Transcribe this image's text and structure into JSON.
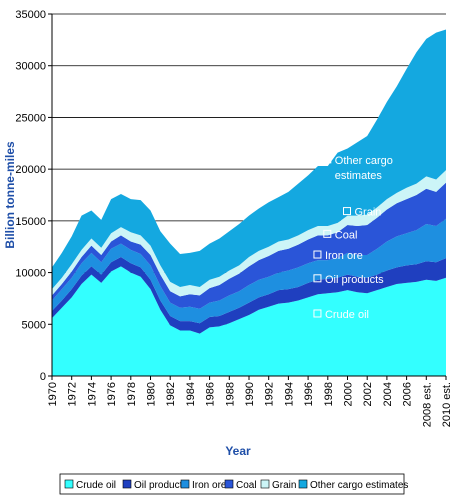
{
  "chart_data": {
    "type": "area",
    "stacked": true,
    "title": "",
    "xlabel": "Year",
    "ylabel": "Billion tonne-miles",
    "ylim": [
      0,
      35000
    ],
    "yticks": [
      0,
      5000,
      10000,
      15000,
      20000,
      25000,
      30000,
      35000
    ],
    "grid": "horizontal",
    "legend_position": "bottom",
    "x_tick_labels": [
      "1970",
      "1972",
      "1974",
      "1976",
      "1978",
      "1980",
      "1982",
      "1984",
      "1986",
      "1988",
      "1990",
      "1992",
      "1994",
      "1996",
      "1998",
      "2000",
      "2002",
      "2004",
      "2006",
      "2008 est.",
      "2010 est."
    ],
    "x": [
      "1970",
      "1971",
      "1972",
      "1973",
      "1974",
      "1975",
      "1976",
      "1977",
      "1978",
      "1979",
      "1980",
      "1981",
      "1982",
      "1983",
      "1984",
      "1985",
      "1986",
      "1987",
      "1988",
      "1989",
      "1990",
      "1991",
      "1992",
      "1993",
      "1994",
      "1995",
      "1996",
      "1997",
      "1998",
      "1999",
      "2000",
      "2001",
      "2002",
      "2003",
      "2004",
      "2005",
      "2006",
      "2007",
      "2008 est.",
      "2009",
      "2010 est."
    ],
    "series": [
      {
        "name": "Crude oil",
        "color": "#33ffff",
        "values": [
          5600,
          6600,
          7600,
          8900,
          9800,
          9000,
          10100,
          10600,
          10000,
          9600,
          8400,
          6400,
          4900,
          4400,
          4400,
          4100,
          4700,
          4800,
          5100,
          5500,
          5900,
          6400,
          6700,
          7000,
          7100,
          7300,
          7600,
          7900,
          8000,
          8100,
          8300,
          8100,
          8000,
          8300,
          8600,
          8900,
          9000,
          9100,
          9300,
          9200,
          9500
        ]
      },
      {
        "name": "Oil products",
        "color": "#1f3fbf",
        "values": [
          700,
          700,
          800,
          800,
          800,
          800,
          900,
          900,
          900,
          900,
          900,
          900,
          900,
          900,
          900,
          1000,
          1000,
          1000,
          1100,
          1100,
          1200,
          1200,
          1200,
          1300,
          1300,
          1300,
          1400,
          1400,
          1400,
          1400,
          1500,
          1500,
          1500,
          1500,
          1600,
          1600,
          1700,
          1700,
          1800,
          1800,
          1900
        ]
      },
      {
        "name": "Iron ore",
        "color": "#1e8fe0",
        "values": [
          1000,
          1100,
          1100,
          1200,
          1300,
          1200,
          1300,
          1300,
          1300,
          1300,
          1400,
          1400,
          1300,
          1300,
          1400,
          1400,
          1400,
          1500,
          1600,
          1600,
          1700,
          1700,
          1700,
          1700,
          1800,
          1900,
          1900,
          1900,
          1800,
          1900,
          2100,
          2100,
          2200,
          2500,
          2800,
          3000,
          3100,
          3300,
          3600,
          3500,
          3800
        ]
      },
      {
        "name": "Coal",
        "color": "#2a55d8",
        "values": [
          500,
          500,
          600,
          600,
          700,
          700,
          700,
          800,
          800,
          900,
          1000,
          1100,
          1100,
          1100,
          1200,
          1300,
          1400,
          1500,
          1600,
          1700,
          1800,
          1900,
          2000,
          2100,
          2100,
          2200,
          2300,
          2400,
          2400,
          2500,
          2700,
          2800,
          2900,
          3000,
          3100,
          3200,
          3300,
          3400,
          3400,
          3300,
          3500
        ]
      },
      {
        "name": "Grain",
        "color": "#ccf5f7",
        "values": [
          600,
          600,
          700,
          700,
          700,
          700,
          800,
          800,
          900,
          900,
          900,
          900,
          900,
          900,
          900,
          800,
          800,
          800,
          800,
          800,
          900,
          900,
          900,
          900,
          900,
          900,
          900,
          900,
          900,
          900,
          900,
          1000,
          1000,
          1000,
          1000,
          1000,
          1100,
          1100,
          1200,
          1200,
          1200
        ]
      },
      {
        "name": "Other cargo estimates",
        "color": "#14a8e0",
        "values": [
          2100,
          2400,
          2700,
          3300,
          2700,
          2700,
          3300,
          3200,
          3200,
          3400,
          3400,
          3300,
          3700,
          3200,
          3100,
          3500,
          3500,
          3700,
          3800,
          4000,
          4000,
          4100,
          4300,
          4300,
          4600,
          5000,
          5300,
          5800,
          5800,
          6800,
          6500,
          7100,
          7600,
          8500,
          9400,
          10300,
          11500,
          12700,
          13300,
          14200,
          13600
        ]
      }
    ],
    "annotations": [
      {
        "text": "Other cargo estimates",
        "lines": [
          "Other cargo",
          "estimates"
        ],
        "x": "1998",
        "y": 20800
      },
      {
        "text": "Grain",
        "x": "2000",
        "y": 15800
      },
      {
        "text": "Coal",
        "x": "1998",
        "y": 13600
      },
      {
        "text": "Iron ore",
        "x": "1997",
        "y": 11600
      },
      {
        "text": "Oil products",
        "x": "1997",
        "y": 9300
      },
      {
        "text": "Crude oil",
        "x": "1997",
        "y": 5900
      }
    ],
    "legend": [
      "Crude oil",
      "Oil products",
      "Iron ore",
      "Coal",
      "Grain",
      "Other cargo estimates"
    ]
  }
}
